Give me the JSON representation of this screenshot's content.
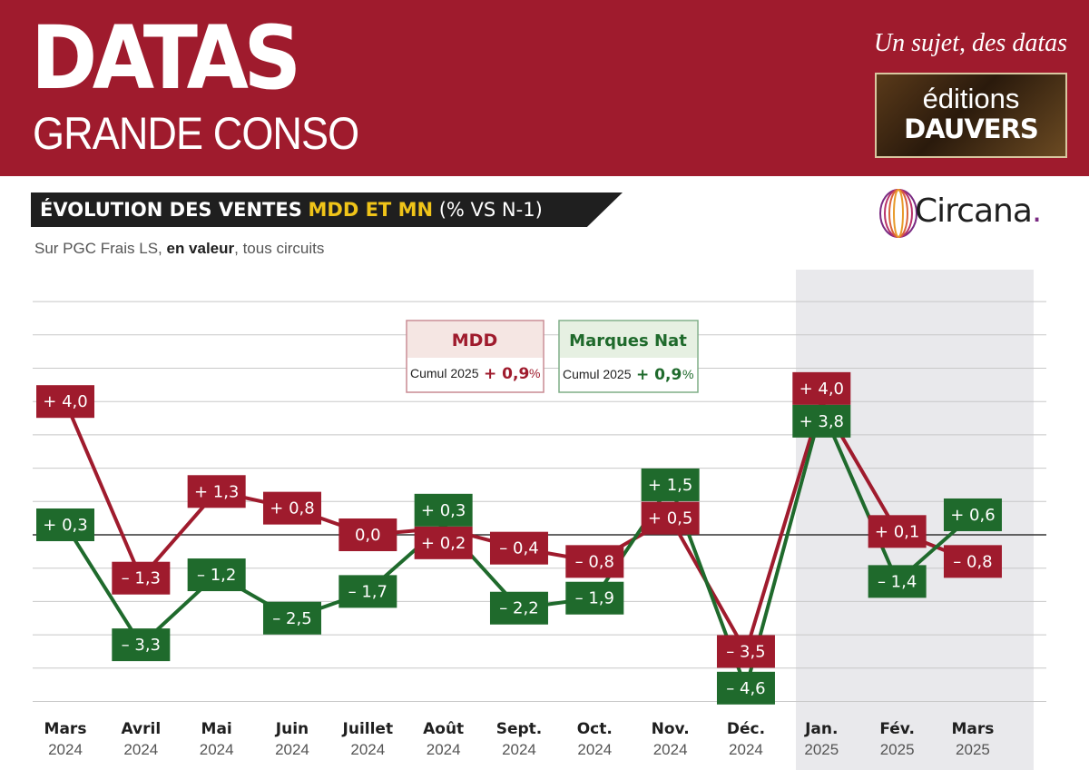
{
  "header": {
    "brand_main": "DATAS",
    "brand_sub": "GRANDE CONSO",
    "tagline": "Un sujet, des datas",
    "publisher_line1": "éditions",
    "publisher_line2": "DAUVERS"
  },
  "title": {
    "main": "ÉVOLUTION DES VENTES",
    "accent": "MDD ET MN",
    "unit": "(% VS N-1)"
  },
  "subtitle": {
    "pre": "Sur PGC Frais LS, ",
    "bold": "en valeur",
    "post": ", tous circuits"
  },
  "partner_logo": {
    "name": "Circana",
    "dot": "."
  },
  "colors": {
    "header_bg": "#9f1b2d",
    "mdd": "#9f1b2d",
    "mn": "#1f6a2c",
    "accent_yellow": "#f0c419",
    "shade": "#e9e9ec"
  },
  "chart_data": {
    "type": "line",
    "categories": [
      [
        "Mars",
        "2024"
      ],
      [
        "Avril",
        "2024"
      ],
      [
        "Mai",
        "2024"
      ],
      [
        "Juin",
        "2024"
      ],
      [
        "Juillet",
        "2024"
      ],
      [
        "Août",
        "2024"
      ],
      [
        "Sept.",
        "2024"
      ],
      [
        "Oct.",
        "2024"
      ],
      [
        "Nov.",
        "2024"
      ],
      [
        "Déc.",
        "2024"
      ],
      [
        "Jan.",
        "2025"
      ],
      [
        "Fév.",
        "2025"
      ],
      [
        "Mars",
        "2025"
      ]
    ],
    "ylim": [
      -5,
      7
    ],
    "grid": true,
    "highlight_range": [
      10,
      12
    ],
    "series": [
      {
        "name": "MDD",
        "color": "#9f1b2d",
        "values": [
          4.0,
          -1.3,
          1.3,
          0.8,
          0.0,
          0.2,
          -0.4,
          -0.8,
          0.5,
          -3.5,
          4.0,
          0.1,
          -0.8
        ],
        "labels": [
          "+ 4,0",
          "– 1,3",
          "+ 1,3",
          "+ 0,8",
          "0,0",
          "+ 0,2",
          "– 0,4",
          "– 0,8",
          "+ 0,5",
          "– 3,5",
          "+ 4,0",
          "+ 0,1",
          "– 0,8"
        ],
        "cumul_label": "Cumul 2025",
        "cumul_value": "+ 0,9",
        "cumul_unit": "%"
      },
      {
        "name": "Marques Nat",
        "color": "#1f6a2c",
        "values": [
          0.3,
          -3.3,
          -1.2,
          -2.5,
          -1.7,
          0.3,
          -2.2,
          -1.9,
          1.5,
          -4.6,
          3.8,
          -1.4,
          0.6
        ],
        "labels": [
          "+ 0,3",
          "– 3,3",
          "– 1,2",
          "– 2,5",
          "– 1,7",
          "+ 0,3",
          "– 2,2",
          "– 1,9",
          "+ 1,5",
          "– 4,6",
          "+ 3,8",
          "– 1,4",
          "+ 0,6"
        ],
        "cumul_label": "Cumul 2025",
        "cumul_value": "+ 0,9",
        "cumul_unit": "%"
      }
    ],
    "legend": "top-center"
  }
}
